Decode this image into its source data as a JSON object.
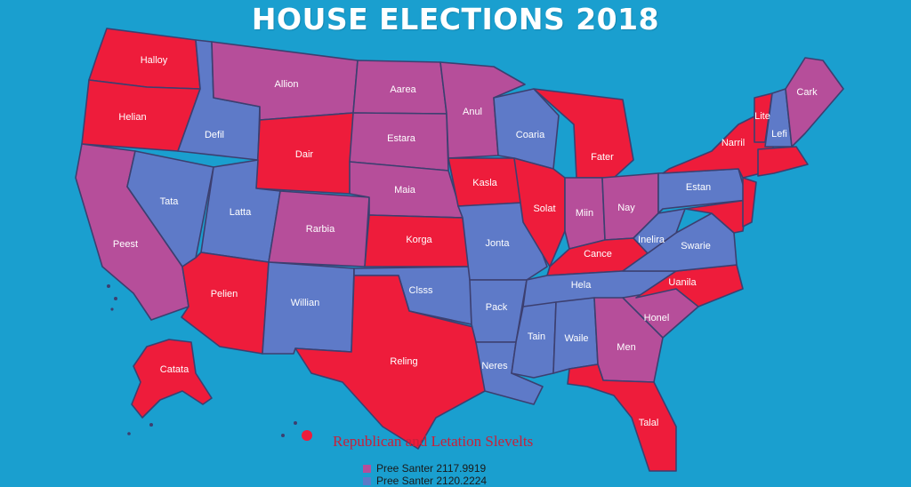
{
  "title": "HOUSE ELECTIONS 2018",
  "colors": {
    "ocean": "#1a9fcf",
    "republican": "#ee1c3b",
    "democrat": "#5e7ac8",
    "mixed": "#b64e9a",
    "border": "#3c3f70"
  },
  "states": {
    "wa": {
      "label": "Halloy",
      "party": "republican"
    },
    "or": {
      "label": "Helian",
      "party": "republican"
    },
    "ca": {
      "label": "Peest",
      "party": "mixed"
    },
    "id": {
      "label": "Defil",
      "party": "democrat"
    },
    "nv": {
      "label": "Tata",
      "party": "democrat"
    },
    "mt": {
      "label": "Allion",
      "party": "mixed"
    },
    "wy": {
      "label": "Dair",
      "party": "republican"
    },
    "ut": {
      "label": "Latta",
      "party": "democrat"
    },
    "az": {
      "label": "Pelien",
      "party": "republican"
    },
    "co": {
      "label": "Rarbia",
      "party": "mixed"
    },
    "nm": {
      "label": "Willian",
      "party": "democrat"
    },
    "nd": {
      "label": "Aarea",
      "party": "mixed"
    },
    "sd": {
      "label": "Estara",
      "party": "mixed"
    },
    "ne": {
      "label": "Maia",
      "party": "mixed"
    },
    "ks": {
      "label": "Korga",
      "party": "republican"
    },
    "ok": {
      "label": "Clsss",
      "party": "democrat"
    },
    "tx": {
      "label": "Reling",
      "party": "republican"
    },
    "mn": {
      "label": "Anul",
      "party": "mixed"
    },
    "ia": {
      "label": "Kasla",
      "party": "republican"
    },
    "mo": {
      "label": "Jonta",
      "party": "democrat"
    },
    "ar": {
      "label": "Pack",
      "party": "democrat"
    },
    "la": {
      "label": "Neres",
      "party": "democrat"
    },
    "wi": {
      "label": "Coaria",
      "party": "democrat"
    },
    "il": {
      "label": "Solat",
      "party": "republican"
    },
    "mi": {
      "label": "Fater",
      "party": "republican"
    },
    "in": {
      "label": "Miin",
      "party": "mixed"
    },
    "oh": {
      "label": "Nay",
      "party": "mixed"
    },
    "ky": {
      "label": "Cance",
      "party": "republican"
    },
    "tn": {
      "label": "Hela",
      "party": "democrat"
    },
    "ms": {
      "label": "Tain",
      "party": "democrat"
    },
    "al": {
      "label": "Waile",
      "party": "democrat"
    },
    "ga": {
      "label": "Men",
      "party": "mixed"
    },
    "fl": {
      "label": "Talal",
      "party": "republican"
    },
    "sc": {
      "label": "Honel",
      "party": "mixed"
    },
    "nc": {
      "label": "Uanila",
      "party": "republican"
    },
    "va": {
      "label": "Swarie",
      "party": "democrat"
    },
    "wv": {
      "label": "Inelira",
      "party": "democrat"
    },
    "pa": {
      "label": "Estan",
      "party": "democrat"
    },
    "ny": {
      "label": "Narril",
      "party": "republican"
    },
    "vt": {
      "label": "Lite",
      "party": "republican"
    },
    "nh": {
      "label": "Lefi",
      "party": "democrat"
    },
    "me": {
      "label": "Cark",
      "party": "mixed"
    },
    "ak": {
      "label": "Catata",
      "party": "republican"
    }
  },
  "legend": {
    "title": "Republican and Letation Slevelts",
    "items": [
      {
        "label": "Pree Santer 2117.9919",
        "color": "#b64e9a"
      },
      {
        "label": "Pree Santer 2120.2224",
        "color": "#5e7ac8"
      }
    ]
  }
}
